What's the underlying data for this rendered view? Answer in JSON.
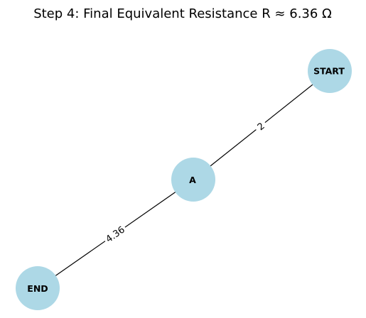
{
  "title": "Step 4: Final Equivalent Resistance R ≈ 6.36 Ω",
  "colors": {
    "node_fill": "#add8e6",
    "edge": "#000000",
    "background": "#ffffff"
  },
  "nodes": [
    {
      "id": "start",
      "label": "START"
    },
    {
      "id": "a",
      "label": "A"
    },
    {
      "id": "end",
      "label": "END"
    }
  ],
  "edges": [
    {
      "from": "start",
      "to": "a",
      "label": "2"
    },
    {
      "from": "a",
      "to": "end",
      "label": "4.36"
    }
  ]
}
